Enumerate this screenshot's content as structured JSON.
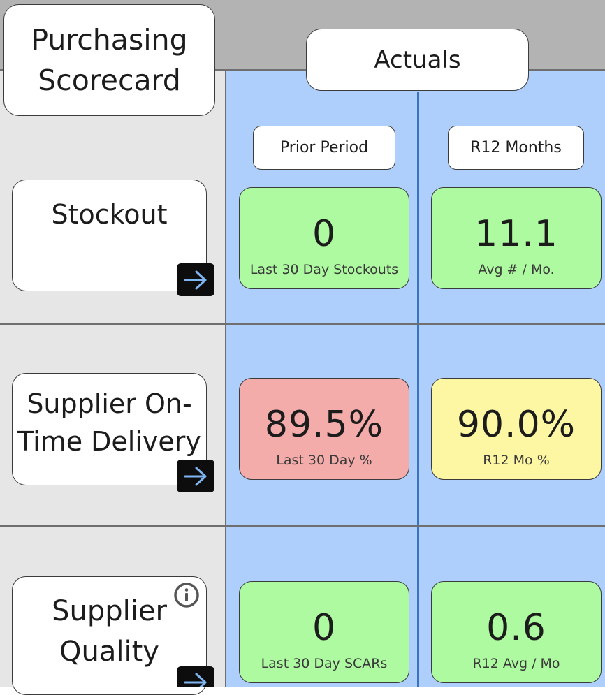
{
  "header": {
    "title": "Purchasing Scorecard",
    "section": "Actuals",
    "columns": [
      "Prior Period",
      "R12 Months"
    ]
  },
  "rows": [
    {
      "label": "Stockout",
      "prior": {
        "value": "0",
        "caption": "Last 30 Day Stockouts",
        "status": "good"
      },
      "r12": {
        "value": "11.1",
        "caption": "Avg # / Mo.",
        "status": "good"
      }
    },
    {
      "label": "Supplier On-Time Delivery",
      "prior": {
        "value": "89.5%",
        "caption": "Last 30 Day %",
        "status": "bad"
      },
      "r12": {
        "value": "90.0%",
        "caption": "R12 Mo %",
        "status": "warning"
      }
    },
    {
      "label": "Supplier Quality",
      "prior": {
        "value": "0",
        "caption": "Last 30 Day SCARs",
        "status": "good"
      },
      "r12": {
        "value": "0.6",
        "caption": "R12 Avg / Mo",
        "status": "good"
      }
    }
  ],
  "colors": {
    "good": "#aefaa1",
    "bad": "#f4acab",
    "warning": "#fdf6a3",
    "panel_blue": "#aecffb",
    "panel_grey": "#e6e6e6"
  },
  "icons": {
    "navigate": "arrow-right-icon",
    "info": "info-icon"
  }
}
